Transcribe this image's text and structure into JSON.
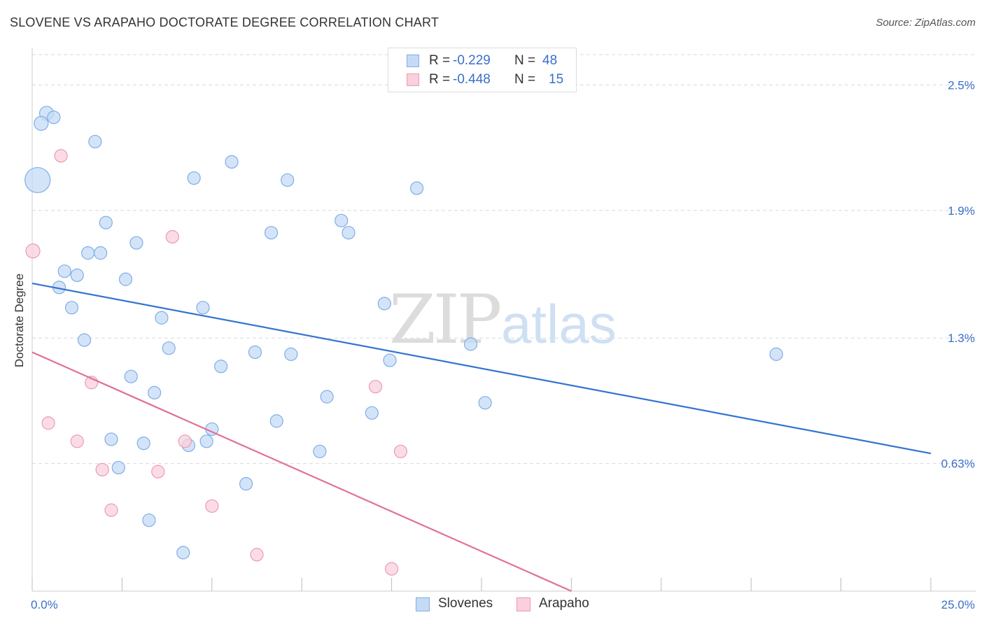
{
  "header": {
    "title": "SLOVENE VS ARAPAHO DOCTORATE DEGREE CORRELATION CHART",
    "source": "Source: ZipAtlas.com"
  },
  "legend": {
    "r_label": "R =",
    "n_label": "N =",
    "slovenes": {
      "r": "-0.229",
      "n": "48"
    },
    "arapaho": {
      "r": "-0.448",
      "n": "15"
    }
  },
  "watermark": {
    "zip": "ZIP",
    "atlas": "atlas"
  },
  "colors": {
    "blue_fill": "#c5dbf5",
    "blue_stroke": "#7eaee6",
    "blue_line": "#3473d1",
    "pink_fill": "#f9d0dc",
    "pink_stroke": "#e99bb4",
    "pink_line": "#e0709a",
    "tick_text": "#3a6fc9",
    "grid": "#d9d9d9"
  },
  "chart_data": {
    "type": "scatter",
    "title": "SLOVENE VS ARAPAHO DOCTORATE DEGREE CORRELATION CHART",
    "xlabel": "",
    "ylabel": "Doctorate Degree",
    "xlim": [
      0,
      25
    ],
    "ylim": [
      0,
      2.65
    ],
    "x_tick_labels": [
      {
        "value": 0,
        "label": "0.0%"
      },
      {
        "value": 25,
        "label": "25.0%"
      }
    ],
    "y_tick_labels": [
      {
        "value": 0.63,
        "label": "0.63%"
      },
      {
        "value": 1.25,
        "label": "1.3%"
      },
      {
        "value": 1.88,
        "label": "1.9%"
      },
      {
        "value": 2.5,
        "label": "2.5%"
      }
    ],
    "x_minor_ticks": [
      0,
      2.5,
      5,
      7.5,
      10,
      12.5,
      15,
      17.5,
      20,
      22.5,
      25
    ],
    "legend_position": "top-center",
    "series": [
      {
        "name": "Slovenes",
        "color": "blue",
        "points": [
          [
            0.4,
            2.36,
            10
          ],
          [
            0.6,
            2.34,
            9
          ],
          [
            0.25,
            2.31,
            10
          ],
          [
            1.75,
            2.22,
            9
          ],
          [
            0.15,
            2.03,
            18
          ],
          [
            5.55,
            2.12,
            9
          ],
          [
            4.5,
            2.04,
            9
          ],
          [
            7.1,
            2.03,
            9
          ],
          [
            10.7,
            1.99,
            9
          ],
          [
            2.05,
            1.82,
            9
          ],
          [
            8.6,
            1.83,
            9
          ],
          [
            6.65,
            1.77,
            9
          ],
          [
            8.8,
            1.77,
            9
          ],
          [
            2.9,
            1.72,
            9
          ],
          [
            1.55,
            1.67,
            9
          ],
          [
            1.9,
            1.67,
            9
          ],
          [
            0.9,
            1.58,
            9
          ],
          [
            1.25,
            1.56,
            9
          ],
          [
            2.6,
            1.54,
            9
          ],
          [
            0.75,
            1.5,
            9
          ],
          [
            1.1,
            1.4,
            9
          ],
          [
            9.8,
            1.42,
            9
          ],
          [
            4.75,
            1.4,
            9
          ],
          [
            3.6,
            1.35,
            9
          ],
          [
            1.45,
            1.24,
            9
          ],
          [
            12.2,
            1.22,
            9
          ],
          [
            3.8,
            1.2,
            9
          ],
          [
            6.2,
            1.18,
            9
          ],
          [
            7.2,
            1.17,
            9
          ],
          [
            20.7,
            1.17,
            9
          ],
          [
            9.95,
            1.14,
            9
          ],
          [
            5.25,
            1.11,
            9
          ],
          [
            2.75,
            1.06,
            9
          ],
          [
            3.4,
            0.98,
            9
          ],
          [
            8.2,
            0.96,
            9
          ],
          [
            12.6,
            0.93,
            9
          ],
          [
            9.45,
            0.88,
            9
          ],
          [
            6.8,
            0.84,
            9
          ],
          [
            5.0,
            0.8,
            9
          ],
          [
            2.2,
            0.75,
            9
          ],
          [
            3.1,
            0.73,
            9
          ],
          [
            4.35,
            0.72,
            9
          ],
          [
            4.85,
            0.74,
            9
          ],
          [
            8.0,
            0.69,
            9
          ],
          [
            2.4,
            0.61,
            9
          ],
          [
            5.95,
            0.53,
            9
          ],
          [
            3.25,
            0.35,
            9
          ],
          [
            4.2,
            0.19,
            9
          ]
        ]
      },
      {
        "name": "Arapaho",
        "color": "pink",
        "points": [
          [
            0.8,
            2.15,
            9
          ],
          [
            3.9,
            1.75,
            9
          ],
          [
            0.02,
            1.68,
            10
          ],
          [
            1.65,
            1.03,
            9
          ],
          [
            9.55,
            1.01,
            9
          ],
          [
            0.45,
            0.83,
            9
          ],
          [
            1.25,
            0.74,
            9
          ],
          [
            4.25,
            0.74,
            9
          ],
          [
            10.25,
            0.69,
            9
          ],
          [
            1.95,
            0.6,
            9
          ],
          [
            3.5,
            0.59,
            9
          ],
          [
            5.0,
            0.42,
            9
          ],
          [
            2.2,
            0.4,
            9
          ],
          [
            6.25,
            0.18,
            9
          ],
          [
            10.0,
            0.11,
            9
          ]
        ]
      }
    ],
    "trend_lines": [
      {
        "series": "Slovenes",
        "x0": 0,
        "y0": 1.52,
        "x1": 25,
        "y1": 0.68
      },
      {
        "series": "Arapaho",
        "x0": 0,
        "y0": 1.18,
        "x1": 15,
        "y1": 0.0
      }
    ]
  },
  "bottom_legend": {
    "slovenes_label": "Slovenes",
    "arapaho_label": "Arapaho"
  }
}
